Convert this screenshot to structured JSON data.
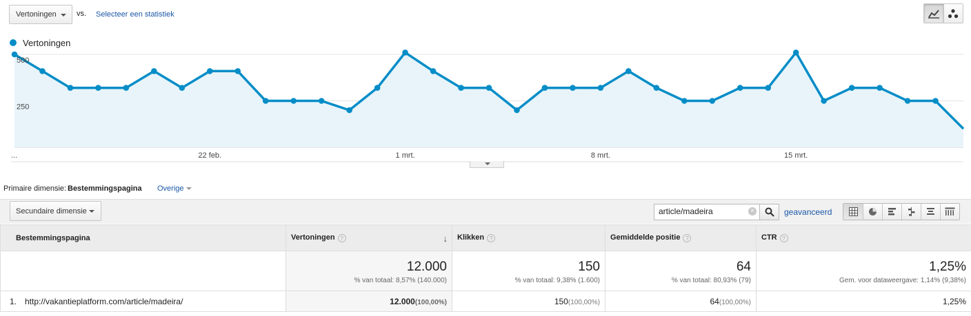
{
  "toolbar": {
    "metric_select": "Vertoningen",
    "vs_label": "vs.",
    "select_stat_link": "Selecteer een statistiek"
  },
  "legend": {
    "label": "Vertoningen",
    "color": "#058dc7"
  },
  "chart_data": {
    "type": "area",
    "series": [
      {
        "name": "Vertoningen",
        "values": [
          500,
          410,
          320,
          320,
          320,
          410,
          320,
          410,
          410,
          250,
          250,
          250,
          200,
          320,
          510,
          410,
          320,
          320,
          200,
          320,
          320,
          320,
          410,
          320,
          250,
          250,
          320,
          320,
          510,
          250,
          320,
          320,
          250,
          250,
          100
        ]
      }
    ],
    "x_tick_labels": [
      "...",
      "22 feb.",
      "1 mrt.",
      "8 mrt.",
      "15 mrt."
    ],
    "x_tick_index": [
      0,
      7,
      14,
      21,
      28
    ],
    "y_ticks": [
      250,
      500
    ],
    "ylim": [
      0,
      500
    ],
    "grid": true
  },
  "primary_dimension": {
    "label": "Primaire dimensie:",
    "value": "Bestemmingspagina",
    "other": "Overige"
  },
  "table_toolbar": {
    "secondary_dimension": "Secundaire dimensie",
    "search_value": "article/madeira",
    "advanced_link": "geavanceerd"
  },
  "table": {
    "headers": {
      "dimension": "Bestemmingspagina",
      "impressions": "Vertoningen",
      "clicks": "Klikken",
      "avg_position": "Gemiddelde positie",
      "ctr": "CTR"
    },
    "totals": {
      "impressions": "12.000",
      "impressions_sub": "% van totaal: 8,57% (140.000)",
      "clicks": "150",
      "clicks_sub": "% van totaal: 9,38% (1.600)",
      "avg_position": "64",
      "avg_position_sub": "% van totaal: 80,93% (79)",
      "ctr": "1,25%",
      "ctr_sub": "Gem. voor dataweergave: 1,14% (9,38%)"
    },
    "rows": [
      {
        "num": "1.",
        "page": "http://vakantieplatform.com/article/madeira/",
        "impressions": "12.000",
        "impressions_pct": "(100,00%)",
        "clicks": "150",
        "clicks_pct": "(100,00%)",
        "avg_position": "64",
        "avg_position_pct": "(100,00%)",
        "ctr": "1,25%"
      }
    ]
  }
}
